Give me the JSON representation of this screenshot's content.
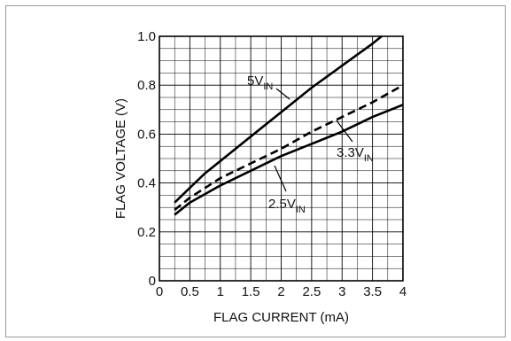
{
  "chart_data": {
    "type": "line",
    "xlabel": "FLAG CURRENT (mA)",
    "ylabel": "FLAG VOLTAGE (V)",
    "xlim": [
      0,
      4
    ],
    "ylim": [
      0,
      1.0
    ],
    "x_ticks": [
      "0",
      "0.5",
      "1",
      "1.5",
      "2",
      "2.5",
      "3",
      "3.5",
      "4"
    ],
    "y_ticks": [
      "0",
      "0.2",
      "0.4",
      "0.6",
      "0.8",
      "1.0"
    ],
    "grid": true,
    "series": [
      {
        "name": "5V",
        "name_sub": "IN",
        "style": "solid",
        "x": [
          0.25,
          0.5,
          0.75,
          1.0,
          1.5,
          2.0,
          2.5,
          3.0,
          3.5,
          3.65
        ],
        "y": [
          0.32,
          0.38,
          0.44,
          0.49,
          0.59,
          0.69,
          0.79,
          0.88,
          0.97,
          1.0
        ]
      },
      {
        "name": "3.3V",
        "name_sub": "IN",
        "style": "dashed",
        "x": [
          0.25,
          0.5,
          1.0,
          1.5,
          2.0,
          2.5,
          3.0,
          3.5,
          4.0
        ],
        "y": [
          0.29,
          0.34,
          0.42,
          0.48,
          0.54,
          0.61,
          0.67,
          0.73,
          0.8
        ]
      },
      {
        "name": "2.5V",
        "name_sub": "IN",
        "style": "solid",
        "x": [
          0.25,
          0.5,
          1.0,
          1.5,
          2.0,
          2.5,
          3.0,
          3.5,
          4.0
        ],
        "y": [
          0.27,
          0.32,
          0.39,
          0.45,
          0.51,
          0.56,
          0.61,
          0.67,
          0.72
        ]
      }
    ]
  }
}
